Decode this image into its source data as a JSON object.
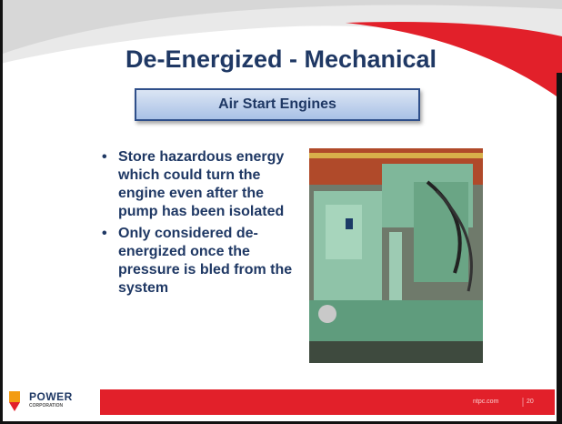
{
  "slide": {
    "title": "De-Energized - Mechanical",
    "subtitle": "Air Start Engines",
    "bullets": [
      "Store hazardous energy which could turn the engine even after the pump has been isolated",
      "Only considered de-energized once the pressure is bled from the system"
    ],
    "footer": {
      "logo": "POWER",
      "logo_sub": "CORPORATION",
      "site": "ntpc.com",
      "page": "20"
    }
  }
}
